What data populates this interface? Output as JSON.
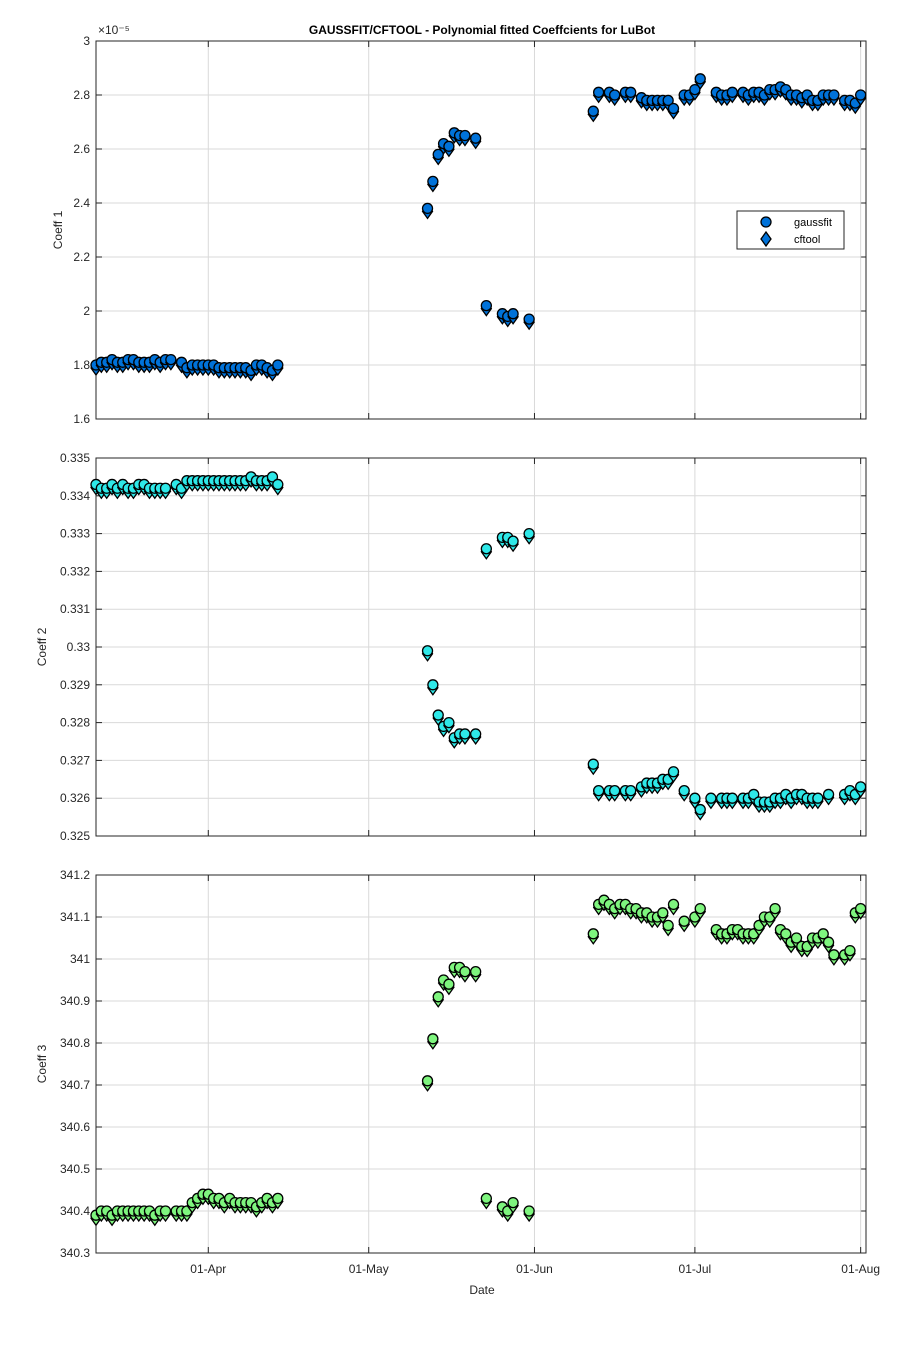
{
  "figure": {
    "title": "GAUSSFIT/CFTOOL - Polynomial fitted Coeffcients for LuBot",
    "xlabel": "Date",
    "x_ticks": [
      "01-Apr",
      "01-May",
      "01-Jun",
      "01-Jul",
      "01-Aug"
    ]
  },
  "legend": {
    "gaussfit": "gaussfit",
    "cftool": "cftool"
  },
  "chart_data": [
    {
      "type": "scatter",
      "ylabel": "Coeff 1",
      "ylim": [
        1.6,
        3.0
      ],
      "yticks": [
        "1.6",
        "1.8",
        "2",
        "2.2",
        "2.4",
        "2.6",
        "2.8",
        "3"
      ],
      "exponent_label": "×10⁻⁵",
      "xlim": [
        "2018-03-11",
        "2018-08-02"
      ],
      "grid": true,
      "legend_position": "right",
      "color": "#0072d9",
      "series": [
        {
          "name": "gaussfit",
          "marker": "circle"
        },
        {
          "name": "cftool",
          "marker": "diamond"
        }
      ],
      "x": [
        "2018-03-11",
        "2018-03-12",
        "2018-03-13",
        "2018-03-14",
        "2018-03-15",
        "2018-03-16",
        "2018-03-17",
        "2018-03-18",
        "2018-03-19",
        "2018-03-20",
        "2018-03-21",
        "2018-03-22",
        "2018-03-23",
        "2018-03-24",
        "2018-03-25",
        "2018-03-27",
        "2018-03-28",
        "2018-03-29",
        "2018-03-30",
        "2018-03-31",
        "2018-04-01",
        "2018-04-02",
        "2018-04-03",
        "2018-04-04",
        "2018-04-05",
        "2018-04-06",
        "2018-04-07",
        "2018-04-08",
        "2018-04-09",
        "2018-04-10",
        "2018-04-11",
        "2018-04-12",
        "2018-04-13",
        "2018-04-14",
        "2018-05-12",
        "2018-05-13",
        "2018-05-14",
        "2018-05-15",
        "2018-05-16",
        "2018-05-17",
        "2018-05-18",
        "2018-05-19",
        "2018-05-21",
        "2018-05-23",
        "2018-05-26",
        "2018-05-27",
        "2018-05-28",
        "2018-05-31",
        "2018-06-12",
        "2018-06-13",
        "2018-06-15",
        "2018-06-16",
        "2018-06-18",
        "2018-06-19",
        "2018-06-21",
        "2018-06-22",
        "2018-06-23",
        "2018-06-24",
        "2018-06-25",
        "2018-06-26",
        "2018-06-27",
        "2018-06-29",
        "2018-06-30",
        "2018-07-01",
        "2018-07-02",
        "2018-07-05",
        "2018-07-06",
        "2018-07-07",
        "2018-07-08",
        "2018-07-10",
        "2018-07-11",
        "2018-07-12",
        "2018-07-13",
        "2018-07-14",
        "2018-07-15",
        "2018-07-16",
        "2018-07-17",
        "2018-07-18",
        "2018-07-19",
        "2018-07-20",
        "2018-07-21",
        "2018-07-22",
        "2018-07-23",
        "2018-07-24",
        "2018-07-25",
        "2018-07-26",
        "2018-07-27",
        "2018-07-29",
        "2018-07-30",
        "2018-07-31",
        "2018-08-01"
      ],
      "y": [
        1.8,
        1.81,
        1.81,
        1.82,
        1.81,
        1.81,
        1.82,
        1.82,
        1.81,
        1.81,
        1.81,
        1.82,
        1.81,
        1.82,
        1.82,
        1.81,
        1.79,
        1.8,
        1.8,
        1.8,
        1.8,
        1.8,
        1.79,
        1.79,
        1.79,
        1.79,
        1.79,
        1.79,
        1.78,
        1.8,
        1.8,
        1.79,
        1.78,
        1.8,
        2.38,
        2.48,
        2.58,
        2.62,
        2.61,
        2.66,
        2.65,
        2.65,
        2.64,
        2.02,
        1.99,
        1.98,
        1.99,
        1.97,
        2.74,
        2.81,
        2.81,
        2.8,
        2.81,
        2.81,
        2.79,
        2.78,
        2.78,
        2.78,
        2.78,
        2.78,
        2.75,
        2.8,
        2.8,
        2.82,
        2.86,
        2.81,
        2.8,
        2.8,
        2.81,
        2.81,
        2.8,
        2.81,
        2.81,
        2.8,
        2.82,
        2.82,
        2.83,
        2.82,
        2.8,
        2.8,
        2.79,
        2.8,
        2.78,
        2.78,
        2.8,
        2.8,
        2.8,
        2.78,
        2.78,
        2.77,
        2.8
      ]
    },
    {
      "type": "scatter",
      "ylabel": "Coeff 2",
      "ylim": [
        0.325,
        0.335
      ],
      "yticks": [
        "0.325",
        "0.326",
        "0.327",
        "0.328",
        "0.329",
        "0.33",
        "0.331",
        "0.332",
        "0.333",
        "0.334",
        "0.335"
      ],
      "xlim": [
        "2018-03-11",
        "2018-08-02"
      ],
      "grid": true,
      "color": "#2ee8e8",
      "series": [
        {
          "name": "gaussfit",
          "marker": "circle"
        },
        {
          "name": "cftool",
          "marker": "diamond"
        }
      ],
      "x": [
        "2018-03-11",
        "2018-03-12",
        "2018-03-13",
        "2018-03-14",
        "2018-03-15",
        "2018-03-16",
        "2018-03-17",
        "2018-03-18",
        "2018-03-19",
        "2018-03-20",
        "2018-03-21",
        "2018-03-22",
        "2018-03-23",
        "2018-03-24",
        "2018-03-26",
        "2018-03-27",
        "2018-03-28",
        "2018-03-29",
        "2018-03-30",
        "2018-03-31",
        "2018-04-01",
        "2018-04-02",
        "2018-04-03",
        "2018-04-04",
        "2018-04-05",
        "2018-04-06",
        "2018-04-07",
        "2018-04-08",
        "2018-04-09",
        "2018-04-10",
        "2018-04-11",
        "2018-04-12",
        "2018-04-13",
        "2018-04-14",
        "2018-05-12",
        "2018-05-13",
        "2018-05-14",
        "2018-05-15",
        "2018-05-16",
        "2018-05-17",
        "2018-05-18",
        "2018-05-19",
        "2018-05-21",
        "2018-05-23",
        "2018-05-26",
        "2018-05-27",
        "2018-05-28",
        "2018-05-31",
        "2018-06-12",
        "2018-06-13",
        "2018-06-15",
        "2018-06-16",
        "2018-06-18",
        "2018-06-19",
        "2018-06-21",
        "2018-06-22",
        "2018-06-23",
        "2018-06-24",
        "2018-06-25",
        "2018-06-26",
        "2018-06-27",
        "2018-06-29",
        "2018-07-01",
        "2018-07-02",
        "2018-07-04",
        "2018-07-06",
        "2018-07-07",
        "2018-07-08",
        "2018-07-10",
        "2018-07-11",
        "2018-07-12",
        "2018-07-13",
        "2018-07-14",
        "2018-07-15",
        "2018-07-16",
        "2018-07-17",
        "2018-07-18",
        "2018-07-19",
        "2018-07-20",
        "2018-07-21",
        "2018-07-22",
        "2018-07-23",
        "2018-07-24",
        "2018-07-26",
        "2018-07-29",
        "2018-07-30",
        "2018-07-31",
        "2018-08-01"
      ],
      "y": [
        0.3343,
        0.3342,
        0.3342,
        0.3343,
        0.3342,
        0.3343,
        0.3342,
        0.3342,
        0.3343,
        0.3343,
        0.3342,
        0.3342,
        0.3342,
        0.3342,
        0.3343,
        0.3342,
        0.3344,
        0.3344,
        0.3344,
        0.3344,
        0.3344,
        0.3344,
        0.3344,
        0.3344,
        0.3344,
        0.3344,
        0.3344,
        0.3344,
        0.3345,
        0.3344,
        0.3344,
        0.3344,
        0.3345,
        0.3343,
        0.3299,
        0.329,
        0.3282,
        0.3279,
        0.328,
        0.3276,
        0.3277,
        0.3277,
        0.3277,
        0.3326,
        0.3329,
        0.3329,
        0.3328,
        0.333,
        0.3269,
        0.3262,
        0.3262,
        0.3262,
        0.3262,
        0.3262,
        0.3263,
        0.3264,
        0.3264,
        0.3264,
        0.3265,
        0.3265,
        0.3267,
        0.3262,
        0.326,
        0.3257,
        0.326,
        0.326,
        0.326,
        0.326,
        0.326,
        0.326,
        0.3261,
        0.3259,
        0.3259,
        0.3259,
        0.326,
        0.326,
        0.3261,
        0.326,
        0.3261,
        0.3261,
        0.326,
        0.326,
        0.326,
        0.3261,
        0.3261,
        0.3262,
        0.3261,
        0.3263
      ]
    },
    {
      "type": "scatter",
      "ylabel": "Coeff 3",
      "ylim": [
        340.3,
        341.2
      ],
      "yticks": [
        "340.3",
        "340.4",
        "340.5",
        "340.6",
        "340.7",
        "340.8",
        "340.9",
        "341",
        "341.1",
        "341.2"
      ],
      "xlim": [
        "2018-03-11",
        "2018-08-02"
      ],
      "grid": true,
      "color": "#7ef57e",
      "series": [
        {
          "name": "gaussfit",
          "marker": "circle"
        },
        {
          "name": "cftool",
          "marker": "diamond"
        }
      ],
      "x": [
        "2018-03-11",
        "2018-03-12",
        "2018-03-13",
        "2018-03-14",
        "2018-03-15",
        "2018-03-16",
        "2018-03-17",
        "2018-03-18",
        "2018-03-19",
        "2018-03-20",
        "2018-03-21",
        "2018-03-22",
        "2018-03-23",
        "2018-03-24",
        "2018-03-26",
        "2018-03-27",
        "2018-03-28",
        "2018-03-29",
        "2018-03-30",
        "2018-03-31",
        "2018-04-01",
        "2018-04-02",
        "2018-04-03",
        "2018-04-04",
        "2018-04-05",
        "2018-04-06",
        "2018-04-07",
        "2018-04-08",
        "2018-04-09",
        "2018-04-10",
        "2018-04-11",
        "2018-04-12",
        "2018-04-13",
        "2018-04-14",
        "2018-05-12",
        "2018-05-13",
        "2018-05-14",
        "2018-05-15",
        "2018-05-16",
        "2018-05-17",
        "2018-05-18",
        "2018-05-19",
        "2018-05-21",
        "2018-05-23",
        "2018-05-26",
        "2018-05-27",
        "2018-05-28",
        "2018-05-31",
        "2018-06-12",
        "2018-06-13",
        "2018-06-14",
        "2018-06-15",
        "2018-06-16",
        "2018-06-17",
        "2018-06-18",
        "2018-06-19",
        "2018-06-20",
        "2018-06-21",
        "2018-06-22",
        "2018-06-23",
        "2018-06-24",
        "2018-06-25",
        "2018-06-26",
        "2018-06-27",
        "2018-06-29",
        "2018-07-01",
        "2018-07-02",
        "2018-07-05",
        "2018-07-06",
        "2018-07-07",
        "2018-07-08",
        "2018-07-09",
        "2018-07-10",
        "2018-07-11",
        "2018-07-12",
        "2018-07-13",
        "2018-07-14",
        "2018-07-15",
        "2018-07-16",
        "2018-07-17",
        "2018-07-18",
        "2018-07-19",
        "2018-07-20",
        "2018-07-21",
        "2018-07-22",
        "2018-07-23",
        "2018-07-24",
        "2018-07-25",
        "2018-07-26",
        "2018-07-27",
        "2018-07-29",
        "2018-07-30",
        "2018-07-31",
        "2018-08-01"
      ],
      "y": [
        340.39,
        340.4,
        340.4,
        340.39,
        340.4,
        340.4,
        340.4,
        340.4,
        340.4,
        340.4,
        340.4,
        340.39,
        340.4,
        340.4,
        340.4,
        340.4,
        340.4,
        340.42,
        340.43,
        340.44,
        340.44,
        340.43,
        340.43,
        340.42,
        340.43,
        340.42,
        340.42,
        340.42,
        340.42,
        340.41,
        340.42,
        340.43,
        340.42,
        340.43,
        340.71,
        340.81,
        340.91,
        340.95,
        340.94,
        340.98,
        340.98,
        340.97,
        340.97,
        340.43,
        340.41,
        340.4,
        340.42,
        340.4,
        341.06,
        341.13,
        341.14,
        341.13,
        341.12,
        341.13,
        341.13,
        341.12,
        341.12,
        341.11,
        341.11,
        341.1,
        341.1,
        341.11,
        341.08,
        341.13,
        341.09,
        341.1,
        341.12,
        341.07,
        341.06,
        341.06,
        341.07,
        341.07,
        341.06,
        341.06,
        341.06,
        341.08,
        341.1,
        341.1,
        341.12,
        341.07,
        341.06,
        341.04,
        341.05,
        341.03,
        341.03,
        341.05,
        341.05,
        341.06,
        341.04,
        341.01,
        341.01,
        341.02,
        341.11,
        341.12
      ]
    }
  ]
}
